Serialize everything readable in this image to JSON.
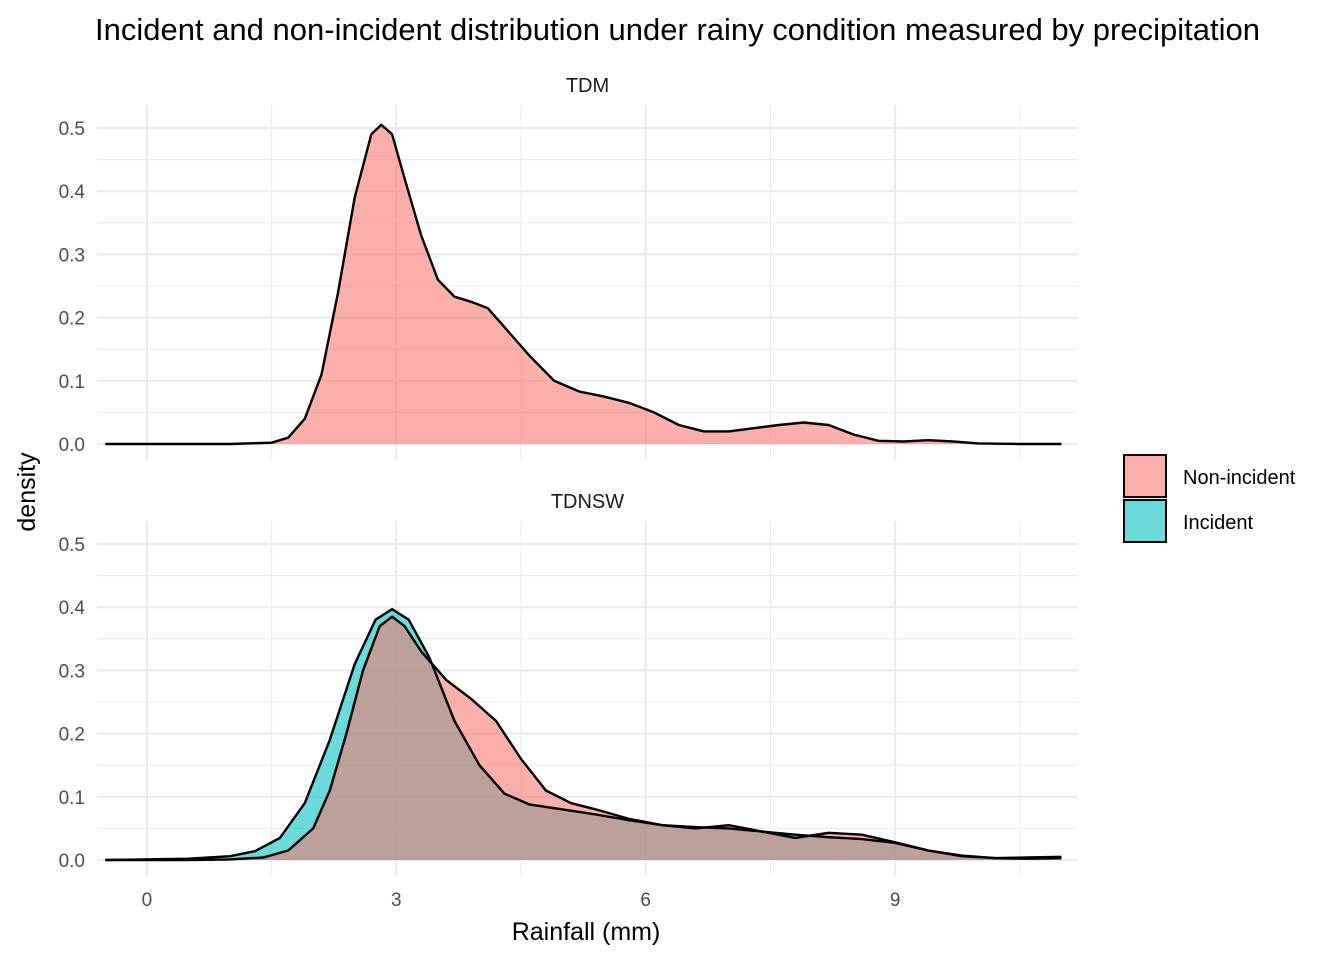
{
  "chart_data": {
    "type": "area",
    "title": "Incident and non-incident distribution under rainy condition measured by precipitation",
    "xlabel": "Rainfall (mm)",
    "ylabel": "density",
    "xlim": [
      -0.5,
      11
    ],
    "ylim": [
      0,
      0.5
    ],
    "x_ticks": [
      0,
      3,
      6,
      9
    ],
    "y_ticks": [
      0.0,
      0.1,
      0.2,
      0.3,
      0.4,
      0.5
    ],
    "y_tick_labels": [
      "0.0",
      "0.1",
      "0.2",
      "0.3",
      "0.4",
      "0.5"
    ],
    "grid": true,
    "legend": {
      "placement": "right",
      "entries": [
        {
          "name": "Non-incident",
          "color": "#F8766D"
        },
        {
          "name": "Incident",
          "color": "#00BFC4"
        }
      ]
    },
    "panels": [
      {
        "name": "TDM",
        "series": [
          {
            "name": "Non-incident",
            "color": "#F8766D",
            "x": [
              -0.5,
              0.5,
              1.0,
              1.5,
              1.7,
              1.9,
              2.1,
              2.3,
              2.5,
              2.7,
              2.82,
              2.95,
              3.1,
              3.3,
              3.5,
              3.7,
              3.9,
              4.1,
              4.3,
              4.6,
              4.9,
              5.2,
              5.5,
              5.8,
              6.1,
              6.4,
              6.7,
              7.0,
              7.3,
              7.6,
              7.9,
              8.2,
              8.5,
              8.8,
              9.1,
              9.4,
              9.7,
              10.0,
              10.5,
              11.0
            ],
            "y": [
              0.0,
              0.0,
              0.0,
              0.002,
              0.01,
              0.04,
              0.11,
              0.24,
              0.39,
              0.49,
              0.505,
              0.49,
              0.42,
              0.33,
              0.26,
              0.233,
              0.225,
              0.215,
              0.185,
              0.14,
              0.1,
              0.083,
              0.075,
              0.065,
              0.05,
              0.03,
              0.02,
              0.02,
              0.025,
              0.03,
              0.034,
              0.03,
              0.015,
              0.005,
              0.004,
              0.006,
              0.004,
              0.001,
              0.0,
              0.0
            ]
          }
        ]
      },
      {
        "name": "TDNSW",
        "series": [
          {
            "name": "Incident",
            "color": "#00BFC4",
            "x": [
              -0.5,
              0.5,
              1.0,
              1.3,
              1.6,
              1.9,
              2.2,
              2.5,
              2.75,
              2.95,
              3.15,
              3.4,
              3.7,
              4.0,
              4.3,
              4.6,
              5.0,
              5.4,
              5.8,
              6.2,
              6.6,
              7.0,
              7.4,
              7.8,
              8.2,
              8.6,
              9.0,
              9.4,
              9.8,
              10.2,
              10.6,
              11.0
            ],
            "y": [
              0.0,
              0.002,
              0.006,
              0.014,
              0.035,
              0.09,
              0.19,
              0.31,
              0.38,
              0.397,
              0.38,
              0.32,
              0.22,
              0.15,
              0.105,
              0.088,
              0.08,
              0.072,
              0.063,
              0.055,
              0.052,
              0.05,
              0.045,
              0.04,
              0.036,
              0.033,
              0.027,
              0.015,
              0.007,
              0.003,
              0.002,
              0.003
            ]
          },
          {
            "name": "Non-incident",
            "color": "#F8766D",
            "x": [
              -0.5,
              0.5,
              1.0,
              1.4,
              1.7,
              2.0,
              2.2,
              2.4,
              2.6,
              2.8,
              2.95,
              3.1,
              3.3,
              3.6,
              3.9,
              4.2,
              4.5,
              4.8,
              5.1,
              5.4,
              5.8,
              6.2,
              6.6,
              7.0,
              7.4,
              7.8,
              8.2,
              8.6,
              9.0,
              9.4,
              9.8,
              10.2,
              10.6,
              11.0
            ],
            "y": [
              0.0,
              0.0,
              0.001,
              0.004,
              0.015,
              0.05,
              0.11,
              0.2,
              0.3,
              0.37,
              0.385,
              0.37,
              0.33,
              0.285,
              0.255,
              0.22,
              0.16,
              0.11,
              0.09,
              0.08,
              0.065,
              0.055,
              0.05,
              0.055,
              0.045,
              0.035,
              0.043,
              0.04,
              0.028,
              0.015,
              0.006,
              0.003,
              0.004,
              0.005
            ]
          }
        ]
      }
    ]
  }
}
